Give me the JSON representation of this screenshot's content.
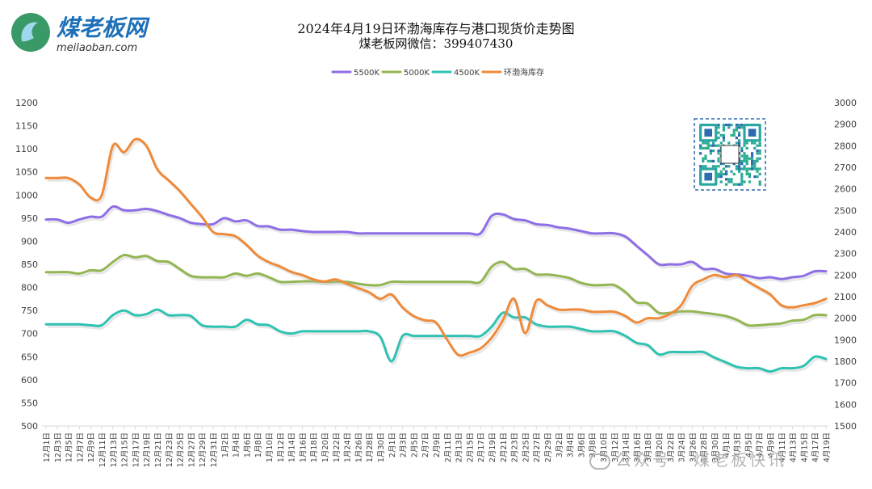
{
  "logo": {
    "name": "煤老板网",
    "url": "meilaoban.com"
  },
  "title": "2024年4月19日环渤海库存与港口现货价走势图",
  "subtitle": "煤老板网微信：399407430",
  "watermark": "公众号 · 煤老板快讯",
  "colors": {
    "5500K": "#8e6ee6",
    "5000K": "#93b552",
    "4500K": "#2fc2b2",
    "inventory": "#ef8a3a"
  },
  "chart_data": {
    "type": "line",
    "legend_position": "top",
    "grid": false,
    "categories": [
      "12月1日",
      "12月3日",
      "12月5日",
      "12月7日",
      "12月9日",
      "12月11日",
      "12月13日",
      "12月15日",
      "12月17日",
      "12月19日",
      "12月21日",
      "12月23日",
      "12月25日",
      "12月27日",
      "12月29日",
      "12月31日",
      "1月2日",
      "1月4日",
      "1月6日",
      "1月8日",
      "1月10日",
      "1月12日",
      "1月14日",
      "1月16日",
      "1月18日",
      "1月20日",
      "1月22日",
      "1月24日",
      "1月26日",
      "1月28日",
      "1月30日",
      "2月1日",
      "2月3日",
      "2月5日",
      "2月7日",
      "2月9日",
      "2月11日",
      "2月13日",
      "2月15日",
      "2月17日",
      "2月19日",
      "2月21日",
      "2月23日",
      "2月25日",
      "2月27日",
      "2月29日",
      "3月2日",
      "3月4日",
      "3月6日",
      "3月8日",
      "3月10日",
      "3月12日",
      "3月14日",
      "3月16日",
      "3月18日",
      "3月20日",
      "3月22日",
      "3月24日",
      "3月26日",
      "3月28日",
      "3月30日",
      "4月1日",
      "4月3日",
      "4月5日",
      "4月7日",
      "4月9日",
      "4月11日",
      "4月13日",
      "4月15日",
      "4月17日",
      "4月19日"
    ],
    "y_left": {
      "min": 500,
      "max": 1200,
      "step": 50
    },
    "y_right": {
      "min": 1500,
      "max": 3000,
      "step": 100
    },
    "series": [
      {
        "name": "5500K",
        "axis": "left",
        "values": [
          947,
          947,
          940,
          947,
          953,
          953,
          975,
          967,
          967,
          970,
          965,
          957,
          950,
          940,
          937,
          937,
          950,
          943,
          945,
          933,
          932,
          925,
          925,
          922,
          920,
          920,
          920,
          920,
          917,
          917,
          917,
          917,
          917,
          917,
          917,
          917,
          917,
          917,
          917,
          917,
          955,
          958,
          948,
          945,
          937,
          935,
          930,
          927,
          922,
          917,
          917,
          917,
          910,
          890,
          870,
          850,
          850,
          850,
          855,
          840,
          840,
          830,
          828,
          825,
          820,
          822,
          818,
          822,
          825,
          835,
          835
        ]
      },
      {
        "name": "5000K",
        "axis": "left",
        "values": [
          833,
          833,
          833,
          830,
          837,
          837,
          855,
          870,
          865,
          868,
          857,
          855,
          840,
          825,
          822,
          822,
          822,
          830,
          825,
          830,
          822,
          812,
          812,
          813,
          813,
          812,
          812,
          812,
          808,
          805,
          805,
          812,
          812,
          812,
          812,
          812,
          812,
          812,
          812,
          812,
          845,
          855,
          840,
          840,
          828,
          828,
          825,
          820,
          810,
          805,
          805,
          805,
          790,
          768,
          765,
          745,
          745,
          748,
          748,
          745,
          742,
          738,
          730,
          718,
          718,
          720,
          722,
          728,
          730,
          740,
          740
        ]
      },
      {
        "name": "4500K",
        "axis": "left",
        "values": [
          720,
          720,
          720,
          720,
          718,
          718,
          740,
          750,
          740,
          742,
          752,
          740,
          740,
          738,
          718,
          715,
          715,
          715,
          730,
          720,
          718,
          705,
          700,
          705,
          705,
          705,
          705,
          705,
          705,
          705,
          693,
          640,
          695,
          695,
          695,
          695,
          695,
          695,
          695,
          695,
          715,
          745,
          735,
          735,
          720,
          715,
          715,
          715,
          710,
          705,
          705,
          705,
          695,
          680,
          675,
          655,
          660,
          660,
          660,
          660,
          648,
          638,
          628,
          625,
          625,
          618,
          625,
          625,
          630,
          650,
          645
        ]
      },
      {
        "name": "环渤海库存",
        "axis": "right",
        "values": [
          2650,
          2650,
          2650,
          2620,
          2560,
          2570,
          2800,
          2770,
          2830,
          2800,
          2690,
          2640,
          2590,
          2530,
          2470,
          2400,
          2390,
          2380,
          2340,
          2290,
          2260,
          2240,
          2215,
          2200,
          2180,
          2170,
          2180,
          2160,
          2140,
          2120,
          2090,
          2110,
          2050,
          2010,
          1990,
          1980,
          1900,
          1830,
          1840,
          1860,
          1910,
          1990,
          2090,
          1930,
          2080,
          2060,
          2040,
          2040,
          2040,
          2030,
          2030,
          2030,
          2010,
          1980,
          2000,
          2000,
          2020,
          2060,
          2150,
          2180,
          2200,
          2190,
          2200,
          2170,
          2140,
          2110,
          2060,
          2050,
          2060,
          2070,
          2090
        ]
      }
    ]
  }
}
